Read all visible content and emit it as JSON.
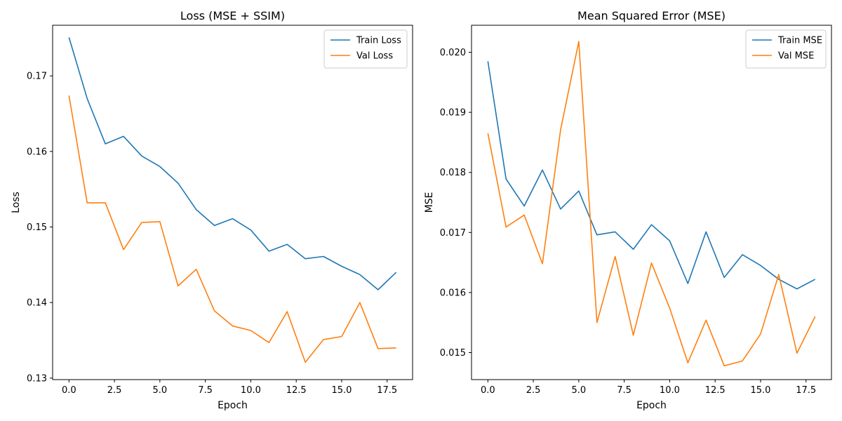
{
  "colors": {
    "train": "#1f77b4",
    "val": "#ff7f0e"
  },
  "chart_data": [
    {
      "type": "line",
      "title": "Loss (MSE + SSIM)",
      "xlabel": "Epoch",
      "ylabel": "Loss",
      "xlim": [
        -0.9,
        18.9
      ],
      "ylim": [
        0.1298,
        0.1767
      ],
      "xticks": [
        0,
        2.5,
        5,
        7.5,
        10,
        12.5,
        15,
        17.5
      ],
      "xtick_labels": [
        "0.0",
        "2.5",
        "5.0",
        "7.5",
        "10.0",
        "12.5",
        "15.0",
        "17.5"
      ],
      "yticks": [
        0.13,
        0.14,
        0.15,
        0.16,
        0.17
      ],
      "ytick_labels": [
        "0.13",
        "0.14",
        "0.15",
        "0.16",
        "0.17"
      ],
      "grid": false,
      "legend": "top-right",
      "x": [
        0,
        1,
        2,
        3,
        4,
        5,
        6,
        7,
        8,
        9,
        10,
        11,
        12,
        13,
        14,
        15,
        16,
        17,
        18
      ],
      "series": [
        {
          "name": "Train Loss",
          "color": "#1f77b4",
          "values": [
            0.1751,
            0.167,
            0.161,
            0.162,
            0.1594,
            0.158,
            0.1558,
            0.1523,
            0.1502,
            0.1511,
            0.1496,
            0.1468,
            0.1477,
            0.1458,
            0.1461,
            0.1448,
            0.1437,
            0.1417,
            0.144
          ]
        },
        {
          "name": "Val Loss",
          "color": "#ff7f0e",
          "values": [
            0.1674,
            0.1532,
            0.1532,
            0.147,
            0.1506,
            0.1507,
            0.1422,
            0.1444,
            0.1389,
            0.1369,
            0.1363,
            0.1347,
            0.1388,
            0.1321,
            0.1351,
            0.1355,
            0.14,
            0.1339,
            0.134
          ]
        }
      ]
    },
    {
      "type": "line",
      "title": "Mean Squared Error (MSE)",
      "xlabel": "Epoch",
      "ylabel": "MSE",
      "xlim": [
        -0.9,
        18.9
      ],
      "ylim": [
        0.01455,
        0.02045
      ],
      "xticks": [
        0,
        2.5,
        5,
        7.5,
        10,
        12.5,
        15,
        17.5
      ],
      "xtick_labels": [
        "0.0",
        "2.5",
        "5.0",
        "7.5",
        "10.0",
        "12.5",
        "15.0",
        "17.5"
      ],
      "yticks": [
        0.015,
        0.016,
        0.017,
        0.018,
        0.019,
        0.02
      ],
      "ytick_labels": [
        "0.015",
        "0.016",
        "0.017",
        "0.018",
        "0.019",
        "0.020"
      ],
      "grid": false,
      "legend": "top-right",
      "x": [
        0,
        1,
        2,
        3,
        4,
        5,
        6,
        7,
        8,
        9,
        10,
        11,
        12,
        13,
        14,
        15,
        16,
        17,
        18
      ],
      "series": [
        {
          "name": "Train MSE",
          "color": "#1f77b4",
          "values": [
            0.01985,
            0.01789,
            0.01744,
            0.01804,
            0.01739,
            0.01769,
            0.01696,
            0.01701,
            0.01672,
            0.01713,
            0.01686,
            0.01615,
            0.01701,
            0.01625,
            0.01663,
            0.01645,
            0.01622,
            0.01606,
            0.01622
          ]
        },
        {
          "name": "Val MSE",
          "color": "#ff7f0e",
          "values": [
            0.01865,
            0.01709,
            0.01729,
            0.01648,
            0.01871,
            0.02018,
            0.0155,
            0.0166,
            0.01529,
            0.01649,
            0.01574,
            0.01483,
            0.01554,
            0.01478,
            0.01486,
            0.01531,
            0.0163,
            0.01499,
            0.0156
          ]
        }
      ]
    }
  ]
}
